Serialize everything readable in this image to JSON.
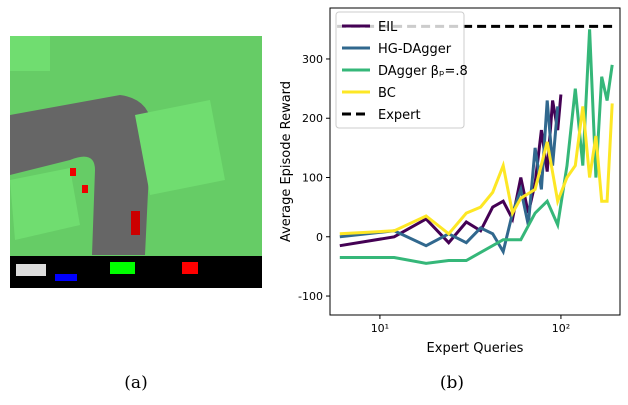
{
  "chart_data": {
    "type": "line",
    "ylabel": "Average Episode Reward",
    "xlabel": "Expert Queries",
    "xscale": "log",
    "xlim": [
      5.3,
      212
    ],
    "ylim": [
      -132,
      386
    ],
    "xticks": [
      {
        "value": 10,
        "label": "10¹"
      },
      {
        "value": 100,
        "label": "10²"
      }
    ],
    "yticks": [
      -100,
      0,
      100,
      200,
      300
    ],
    "legend": "upper left",
    "series": [
      {
        "name": "EIL",
        "color": "#440154",
        "x": [
          6,
          12,
          18,
          24,
          30,
          36,
          42,
          48,
          54,
          60,
          66,
          72,
          78,
          84,
          90,
          96,
          100
        ],
        "values": [
          -15,
          0,
          30,
          -10,
          25,
          10,
          50,
          60,
          30,
          100,
          40,
          90,
          180,
          110,
          230,
          180,
          240
        ]
      },
      {
        "name": "HG-DAgger",
        "color": "#31688e",
        "x": [
          6,
          12,
          18,
          24,
          30,
          36,
          42,
          48,
          54,
          60,
          66,
          72,
          78,
          84,
          90,
          96
        ],
        "values": [
          0,
          10,
          -15,
          5,
          -10,
          15,
          5,
          -25,
          40,
          80,
          20,
          150,
          80,
          230,
          120,
          220
        ]
      },
      {
        "name": "DAgger βₚ=.8",
        "color": "#35b779",
        "x": [
          6,
          12,
          18,
          24,
          30,
          48,
          60,
          72,
          84,
          96,
          108,
          120,
          132,
          144,
          156,
          168,
          180,
          192
        ],
        "values": [
          -35,
          -35,
          -45,
          -40,
          -40,
          -5,
          -5,
          40,
          60,
          20,
          120,
          250,
          120,
          350,
          100,
          270,
          230,
          290
        ]
      },
      {
        "name": "BC",
        "color": "#fde725",
        "x": [
          6,
          12,
          18,
          24,
          30,
          36,
          42,
          48,
          54,
          60,
          72,
          84,
          96,
          108,
          120,
          132,
          144,
          156,
          168,
          180,
          192
        ],
        "values": [
          5,
          10,
          35,
          5,
          40,
          50,
          75,
          120,
          40,
          65,
          80,
          160,
          60,
          100,
          120,
          220,
          100,
          170,
          60,
          60,
          225
        ]
      },
      {
        "name": "Expert",
        "color": "#000000",
        "linestyle": "dashed",
        "x": [
          5.8,
          200
        ],
        "values": [
          355,
          355
        ]
      }
    ]
  },
  "captions": [
    "(a)",
    "(b)"
  ]
}
